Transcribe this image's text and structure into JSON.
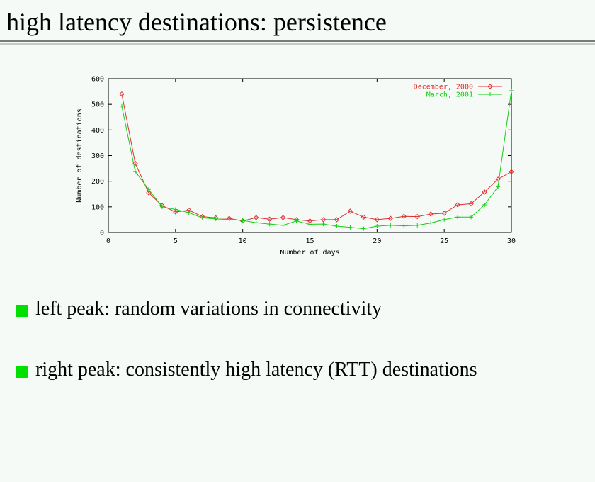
{
  "slide": {
    "title": "high latency destinations: persistence"
  },
  "bullets": [
    {
      "text": "left peak: random variations in connectivity"
    },
    {
      "text": "right peak: consistently high latency (RTT) destinations"
    }
  ],
  "colors": {
    "background": "#f5faf7",
    "bullet": "#00e000",
    "series_dec": "#e03030",
    "series_mar": "#10d010"
  },
  "chart_data": {
    "type": "line",
    "xlabel": "Number of days",
    "ylabel": "Number of destinations",
    "xlim": [
      0,
      30
    ],
    "ylim": [
      0,
      600
    ],
    "xticks": [
      0,
      5,
      10,
      15,
      20,
      25,
      30
    ],
    "yticks": [
      0,
      100,
      200,
      300,
      400,
      500,
      600
    ],
    "grid": false,
    "legend": "top-right",
    "x": [
      1,
      2,
      3,
      4,
      5,
      6,
      7,
      8,
      9,
      10,
      11,
      12,
      13,
      14,
      15,
      16,
      17,
      18,
      19,
      20,
      21,
      22,
      23,
      24,
      25,
      26,
      27,
      28,
      29,
      30
    ],
    "series": [
      {
        "name": "December, 2000",
        "marker": "diamond",
        "color": "#e03030",
        "values": [
          540,
          270,
          155,
          105,
          80,
          87,
          62,
          57,
          55,
          45,
          58,
          52,
          58,
          50,
          45,
          50,
          50,
          83,
          60,
          50,
          55,
          63,
          62,
          72,
          75,
          108,
          112,
          158,
          208,
          237
        ]
      },
      {
        "name": "March, 2001",
        "marker": "plus",
        "color": "#10d010",
        "values": [
          493,
          238,
          168,
          100,
          90,
          77,
          57,
          53,
          50,
          47,
          38,
          33,
          28,
          45,
          32,
          33,
          25,
          20,
          15,
          25,
          28,
          26,
          28,
          37,
          50,
          60,
          60,
          108,
          178,
          553
        ]
      }
    ]
  }
}
